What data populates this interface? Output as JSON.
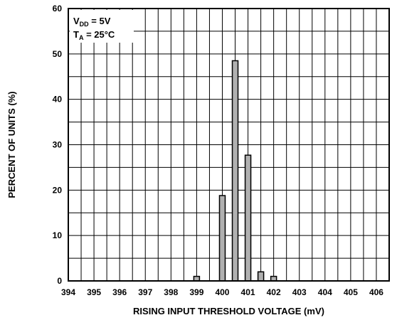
{
  "chart_data": {
    "type": "bar",
    "xlabel": "RISING INPUT THRESHOLD VOLTAGE (mV)",
    "ylabel": "PERCENT OF UNITS (%)",
    "xlim": [
      394,
      406.5
    ],
    "ylim": [
      0,
      60
    ],
    "x_ticks": [
      "394",
      "395",
      "396",
      "397",
      "398",
      "399",
      "400",
      "401",
      "402",
      "403",
      "404",
      "405",
      "406"
    ],
    "y_ticks": [
      "0",
      "10",
      "20",
      "30",
      "40",
      "50",
      "60"
    ],
    "grid": true,
    "bar_color": "#b0b0b0",
    "bars": [
      {
        "x": 399,
        "value": 1.0
      },
      {
        "x": 400,
        "value": 18.8
      },
      {
        "x": 400.5,
        "value": 48.5
      },
      {
        "x": 401,
        "value": 27.7
      },
      {
        "x": 401.5,
        "value": 2.0
      },
      {
        "x": 402,
        "value": 1.0
      }
    ],
    "conditions": {
      "line1_main": "V",
      "line1_sub": "DD",
      "line1_rest": " = 5V",
      "line2_main": "T",
      "line2_sub": "A",
      "line2_rest": " = 25°C"
    }
  }
}
